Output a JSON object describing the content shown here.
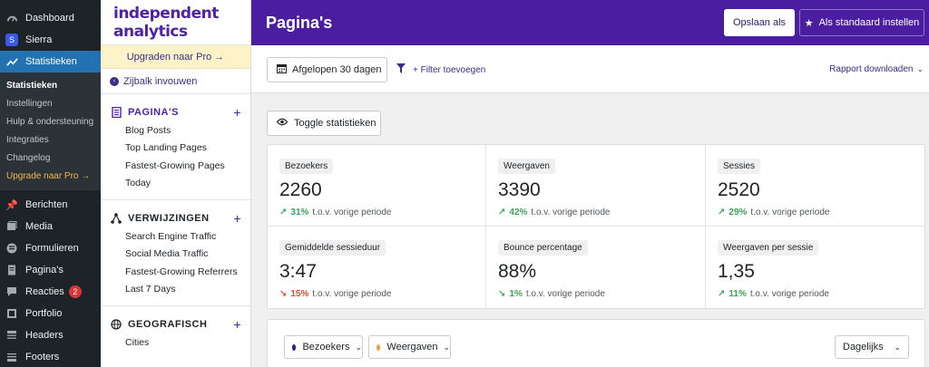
{
  "colors": {
    "wp_sidebar": "#1d2327",
    "wp_active": "#2271b1",
    "header_purple": "#4b1da0",
    "upgrade_bg": "#fcf3c8",
    "positive": "#3aa55a",
    "negative": "#d84e2e",
    "series_visitors": "#3c1f8a",
    "series_views": "#e8a33d"
  },
  "wp_menu": {
    "dashboard": "Dashboard",
    "sierra": "Sierra",
    "stats": "Statistieken",
    "submenu": [
      "Statistieken",
      "Instellingen",
      "Hulp & ondersteuning",
      "Integraties",
      "Changelog",
      "Upgrade naar Pro →"
    ],
    "items": [
      {
        "label": "Berichten",
        "icon": "pin-icon"
      },
      {
        "label": "Media",
        "icon": "media-icon"
      },
      {
        "label": "Formulieren",
        "icon": "forms-icon"
      },
      {
        "label": "Pagina's",
        "icon": "page-icon"
      },
      {
        "label": "Reacties",
        "icon": "comment-icon",
        "badge": "2"
      },
      {
        "label": "Portfolio",
        "icon": "portfolio-icon"
      },
      {
        "label": "Headers",
        "icon": "headers-icon"
      },
      {
        "label": "Footers",
        "icon": "footers-icon"
      }
    ]
  },
  "ia": {
    "logo": "independent analytics",
    "upgrade": "Upgraden naar Pro →",
    "collapse": "Zijbalk invouwen",
    "sections": [
      {
        "title": "PAGINA'S",
        "links": [
          "Blog Posts",
          "Top Landing Pages",
          "Fastest-Growing Pages",
          "Today"
        ]
      },
      {
        "title": "VERWIJZINGEN",
        "links": [
          "Search Engine Traffic",
          "Social Media Traffic",
          "Fastest-Growing Referrers",
          "Last 7 Days"
        ]
      },
      {
        "title": "GEOGRAFISCH",
        "links": [
          "Cities"
        ]
      }
    ]
  },
  "header": {
    "title": "Pagina's",
    "save": "Opslaan als",
    "default": "Als standaard instellen"
  },
  "toolbar": {
    "date_range": "Afgelopen 30 dagen",
    "filter": "+ Filter toevoegen",
    "download": "Rapport downloaden"
  },
  "toggle_stats": "Toggle statistieken",
  "stats": [
    {
      "label": "Bezoekers",
      "value": "2260",
      "change": "31%",
      "direction": "up",
      "suffix": "t.o.v. vorige periode"
    },
    {
      "label": "Weergaven",
      "value": "3390",
      "change": "42%",
      "direction": "up",
      "suffix": "t.o.v. vorige periode"
    },
    {
      "label": "Sessies",
      "value": "2520",
      "change": "29%",
      "direction": "up",
      "suffix": "t.o.v. vorige periode"
    },
    {
      "label": "Gemiddelde sessieduur",
      "value": "3:47",
      "change": "15%",
      "direction": "down",
      "suffix": "t.o.v. vorige periode"
    },
    {
      "label": "Bounce percentage",
      "value": "88%",
      "change": "1%",
      "direction": "down",
      "suffix": "t.o.v. vorige periode"
    },
    {
      "label": "Weergaven per sessie",
      "value": "1,35",
      "change": "11%",
      "direction": "up",
      "suffix": "t.o.v. vorige periode"
    }
  ],
  "chart_controls": {
    "series1": "Bezoekers",
    "series2": "Weergaven",
    "interval": "Dagelijks"
  }
}
